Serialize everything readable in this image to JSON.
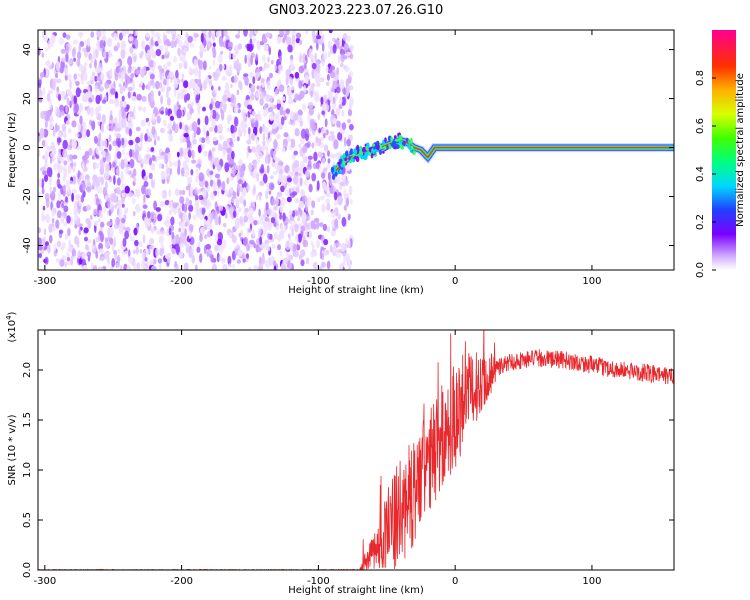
{
  "figure": {
    "title": "GN03.2023.223.07.26.G10"
  },
  "chart_data": [
    {
      "type": "heatmap",
      "xlabel": "Height of straight line (km)",
      "ylabel": "Frequency (Hz)",
      "xlim": [
        -305,
        160
      ],
      "ylim": [
        -50,
        48
      ],
      "xticks": [
        -300,
        -200,
        -100,
        0,
        100
      ],
      "yticks": [
        -40,
        -20,
        0,
        20,
        40
      ],
      "noise_region_x": [
        -305,
        -80
      ],
      "tone_trace": {
        "x": [
          -88,
          -80,
          -70,
          -60,
          -50,
          -40,
          -35,
          -30,
          -25,
          -20,
          -15,
          -10,
          0,
          50,
          100,
          160
        ],
        "y": [
          -10,
          -5,
          -2,
          -1,
          1,
          3,
          2,
          0,
          -1,
          -4,
          0,
          0,
          0,
          0,
          0,
          0
        ]
      },
      "colorbar": {
        "label": "Normalized spectral amplitude",
        "range": [
          0.0,
          1.0
        ],
        "ticks": [
          "0.0",
          "0.2",
          "0.4",
          "0.6",
          "0.8"
        ]
      }
    },
    {
      "type": "line",
      "xlabel": "Height of straight line (km)",
      "ylabel": "SNR (10 * v/v)",
      "scale_note": "(x10",
      "scale_exp": "4",
      "scale_close": ")",
      "xlim": [
        -305,
        160
      ],
      "ylim": [
        0,
        2.4
      ],
      "xticks": [
        -300,
        -200,
        -100,
        0,
        100
      ],
      "yticks": [
        "0.0",
        "0.5",
        "1.0",
        "1.5",
        "2.0"
      ],
      "series": [
        {
          "color": "#e8282c",
          "envelope": {
            "x": [
              -305,
              -70,
              -60,
              -50,
              -40,
              -30,
              -20,
              -10,
              0,
              10,
              20,
              30,
              40,
              60,
              80,
              100,
              120,
              140,
              160
            ],
            "y": [
              0.0,
              0.0,
              0.15,
              0.35,
              0.55,
              0.8,
              1.05,
              1.3,
              1.55,
              1.75,
              1.9,
              2.02,
              2.08,
              2.12,
              2.1,
              2.05,
              2.0,
              1.97,
              1.93
            ]
          }
        }
      ]
    }
  ]
}
